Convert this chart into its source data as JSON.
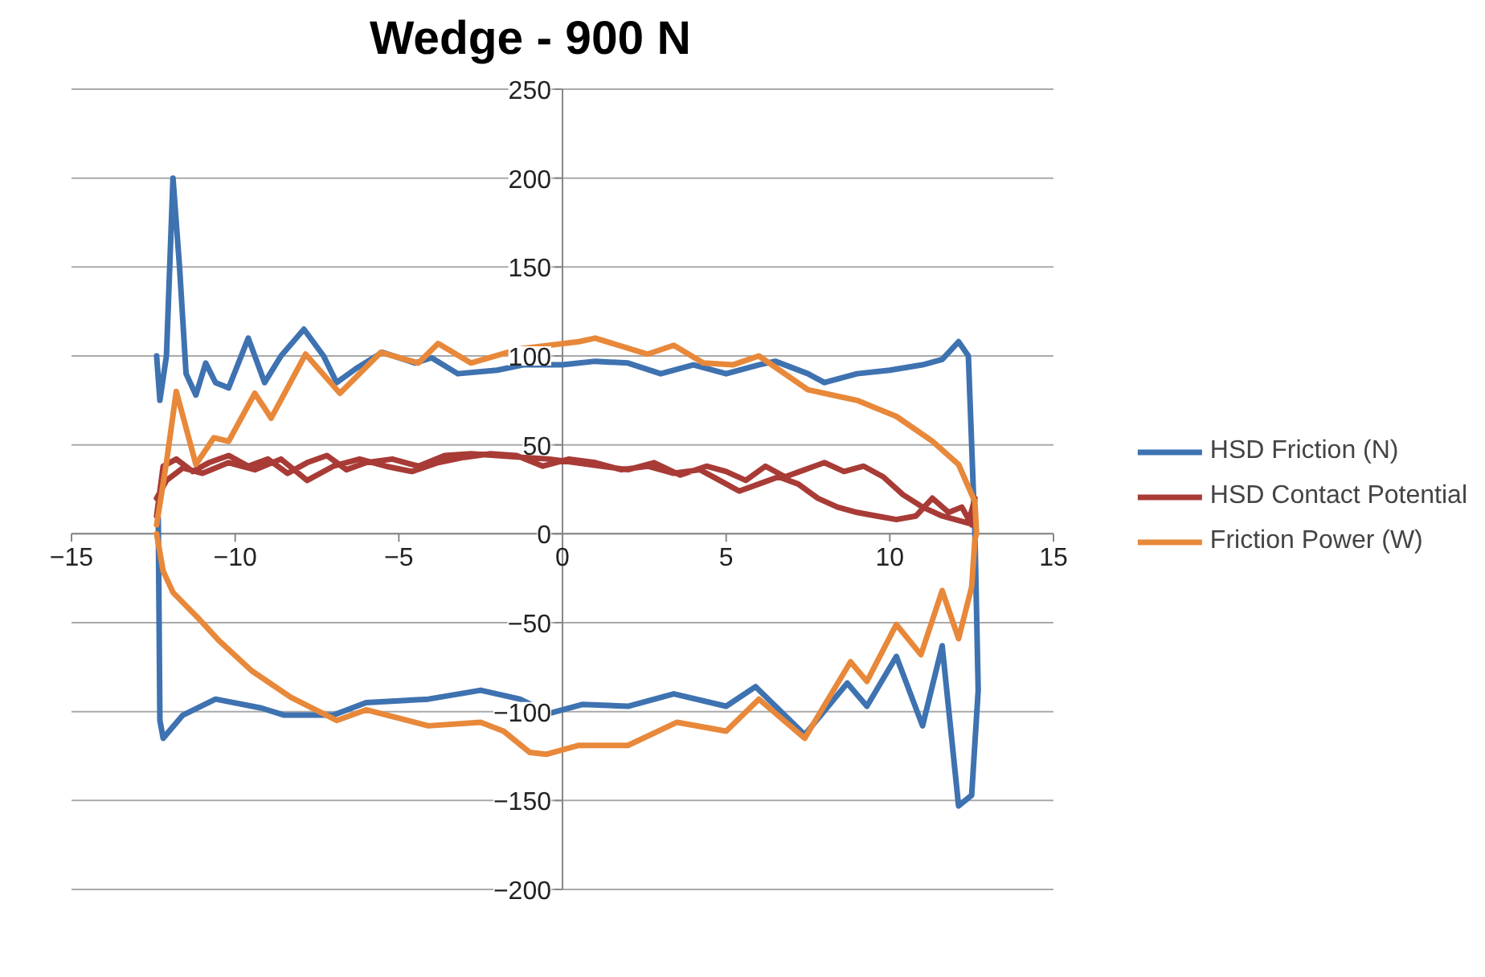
{
  "chart_data": {
    "type": "line",
    "title": "Wedge - 900 N",
    "xlim": [
      -15,
      15
    ],
    "ylim": [
      -200,
      250
    ],
    "xticks": [
      -15,
      -10,
      -5,
      0,
      5,
      10,
      15
    ],
    "yticks": [
      -200,
      -150,
      -100,
      -50,
      0,
      50,
      100,
      150,
      200,
      250
    ],
    "grid": "y",
    "legend": "right",
    "marker": "none",
    "line_style": "solid",
    "series": [
      {
        "name": "HSD Friction (N)",
        "color": "#3e72b0",
        "x": [
          -12.4,
          -12.3,
          -12.1,
          -11.9,
          -11.7,
          -11.5,
          -11.2,
          -10.9,
          -10.6,
          -10.2,
          -9.6,
          -9.1,
          -8.6,
          -7.9,
          -7.3,
          -6.9,
          -6.3,
          -5.5,
          -4.5,
          -4.0,
          -3.2,
          -2.0,
          -1.2,
          0,
          1,
          2,
          3,
          4,
          5,
          6,
          6.5,
          7.5,
          8,
          9,
          10,
          11,
          11.6,
          12.1,
          12.4,
          12.6,
          12.7,
          12.5,
          12.1,
          11.6,
          11.0,
          10.2,
          9.3,
          8.7,
          7.4,
          5.9,
          5.0,
          3.4,
          2.0,
          0.6,
          -0.4,
          -1.3,
          -2.5,
          -4.1,
          -6.0,
          -7.0,
          -8.5,
          -9.2,
          -10.6,
          -11.6,
          -12.2,
          -12.3,
          -12.35
        ],
        "values": [
          100,
          75,
          100,
          200,
          150,
          90,
          78,
          96,
          85,
          82,
          110,
          85,
          100,
          115,
          100,
          85,
          93,
          102,
          96,
          99,
          90,
          92,
          95,
          95,
          97,
          96,
          90,
          95,
          90,
          95,
          97,
          90,
          85,
          90,
          92,
          95,
          98,
          108,
          100,
          0,
          -88,
          -147,
          -153,
          -63,
          -108,
          -69,
          -97,
          -84,
          -113,
          -86,
          -97,
          -90,
          -97,
          -96,
          -101,
          -93,
          -88,
          -93,
          -95,
          -102,
          -102,
          -98,
          -93,
          -102,
          -115,
          -105,
          9
        ]
      },
      {
        "name": "HSD Contact Potential",
        "color": "#a83b36",
        "x": [
          -12.4,
          -12.2,
          -11.8,
          -11.3,
          -10.8,
          -10.2,
          -9.6,
          -9.0,
          -8.4,
          -7.8,
          -7.2,
          -6.6,
          -6.0,
          -5.2,
          -4.4,
          -3.6,
          -2.8,
          -2.0,
          -1.2,
          -0.4,
          0.4,
          1.2,
          2.0,
          2.8,
          3.6,
          4.4,
          5.0,
          5.6,
          6.2,
          6.8,
          7.4,
          8.0,
          8.6,
          9.2,
          9.8,
          10.4,
          11.0,
          11.6,
          12.0,
          12.4,
          12.6,
          12.5,
          12.2,
          11.8,
          11.3,
          10.8,
          10.2,
          9.6,
          9.0,
          8.4,
          7.8,
          7.2,
          6.6,
          6.0,
          5.4,
          4.8,
          4.2,
          3.4,
          2.6,
          1.8,
          1.0,
          0.2,
          -0.6,
          -1.4,
          -2.2,
          -3.0,
          -3.8,
          -4.6,
          -5.4,
          -6.2,
          -7.0,
          -7.8,
          -8.6,
          -9.4,
          -10.2,
          -11.0,
          -11.6,
          -12.1,
          -12.4
        ],
        "values": [
          10,
          38,
          42,
          35,
          40,
          44,
          38,
          42,
          34,
          40,
          44,
          36,
          40,
          42,
          38,
          44,
          45,
          44,
          43,
          42,
          40,
          38,
          36,
          40,
          33,
          38,
          35,
          30,
          38,
          32,
          36,
          40,
          35,
          38,
          32,
          22,
          15,
          10,
          8,
          6,
          20,
          5,
          15,
          12,
          20,
          10,
          8,
          10,
          12,
          15,
          20,
          28,
          32,
          28,
          24,
          30,
          36,
          34,
          38,
          36,
          40,
          42,
          38,
          44,
          45,
          43,
          40,
          35,
          38,
          42,
          38,
          30,
          42,
          36,
          40,
          34,
          37,
          30,
          20
        ]
      },
      {
        "name": "Friction Power (W)",
        "color": "#e8883a",
        "x": [
          -12.4,
          -12.1,
          -11.8,
          -11.2,
          -10.65,
          -10.2,
          -9.4,
          -8.9,
          -7.85,
          -6.8,
          -5.55,
          -4.4,
          -3.8,
          -2.8,
          -1.3,
          0.5,
          1.0,
          2.6,
          3.4,
          4.3,
          5.2,
          6.0,
          7.5,
          9.0,
          10.2,
          11.3,
          12.1,
          12.6,
          12.65,
          12.6,
          12.5,
          12.1,
          11.6,
          10.95,
          10.2,
          9.3,
          8.8,
          7.4,
          6.0,
          5.0,
          3.5,
          2.0,
          0.5,
          -0.5,
          -1.0,
          -1.8,
          -2.5,
          -4.1,
          -6.0,
          -6.9,
          -8.3,
          -9.5,
          -10.5,
          -11.1,
          -11.9,
          -12.2,
          -12.4
        ],
        "values": [
          5,
          40,
          80,
          39,
          54,
          52,
          79,
          65,
          101,
          79,
          102,
          96,
          107,
          96,
          104,
          108,
          110,
          101,
          106,
          96,
          95,
          100,
          81,
          75,
          66,
          52,
          39,
          18,
          0,
          -3,
          -30,
          -59,
          -32,
          -68,
          -51,
          -83,
          -72,
          -115,
          -93,
          -111,
          -106,
          -119,
          -119,
          -124,
          -123,
          -111,
          -106,
          -108,
          -99,
          -105,
          -92,
          -77,
          -60,
          -48,
          -33,
          -21,
          0
        ]
      }
    ]
  }
}
